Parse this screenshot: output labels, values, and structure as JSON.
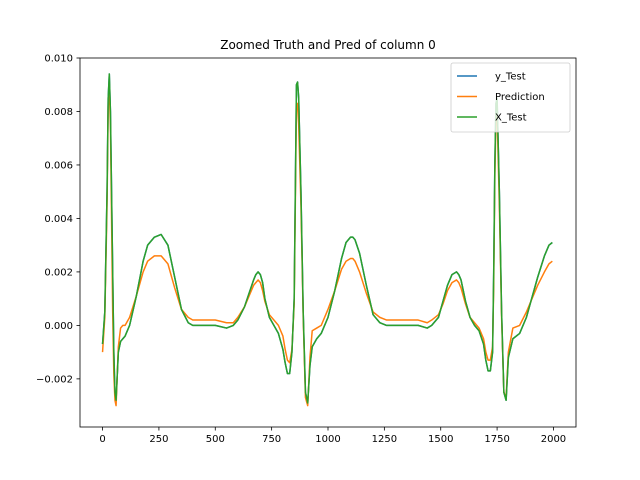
{
  "chart_data": {
    "type": "line",
    "title": "Zoomed Truth and Pred of column 0",
    "xlabel": "",
    "ylabel": "",
    "xlim": [
      -100,
      2100
    ],
    "ylim": [
      -0.0038,
      0.01
    ],
    "xticks": [
      0,
      250,
      500,
      750,
      1000,
      1250,
      1500,
      1750,
      2000
    ],
    "xtick_labels": [
      "0",
      "250",
      "500",
      "750",
      "1000",
      "1250",
      "1500",
      "1750",
      "2000"
    ],
    "yticks": [
      -0.002,
      0.0,
      0.002,
      0.004,
      0.006,
      0.008,
      0.01
    ],
    "ytick_labels": [
      "−0.002",
      "0.000",
      "0.002",
      "0.004",
      "0.006",
      "0.008",
      "0.010"
    ],
    "grid": false,
    "legend_position": "top-right",
    "series": [
      {
        "name": "y_Test",
        "color": "#1f77b4",
        "x": [
          0,
          10,
          20,
          25,
          30,
          35,
          40,
          45,
          50,
          55,
          60,
          70,
          80,
          90,
          100,
          120,
          150,
          180,
          200,
          230,
          260,
          290,
          320,
          350,
          380,
          400,
          450,
          500,
          550,
          580,
          600,
          630,
          650,
          670,
          680,
          690,
          700,
          710,
          720,
          740,
          760,
          780,
          800,
          810,
          820,
          830,
          840,
          850,
          855,
          860,
          865,
          870,
          880,
          890,
          900,
          910,
          920,
          930,
          950,
          970,
          1000,
          1030,
          1060,
          1080,
          1100,
          1110,
          1120,
          1140,
          1170,
          1200,
          1230,
          1260,
          1300,
          1350,
          1400,
          1440,
          1460,
          1490,
          1510,
          1530,
          1550,
          1570,
          1580,
          1590,
          1610,
          1630,
          1650,
          1670,
          1690,
          1700,
          1710,
          1720,
          1730,
          1735,
          1740,
          1745,
          1750,
          1760,
          1770,
          1780,
          1790,
          1800,
          1820,
          1850,
          1880,
          1900,
          1930,
          1960,
          1980,
          1995
        ],
        "y": [
          -0.0007,
          0.0005,
          0.005,
          0.0085,
          0.0094,
          0.008,
          0.005,
          0.002,
          -0.001,
          -0.0025,
          -0.0028,
          -0.001,
          -0.0006,
          -0.0005,
          -0.0004,
          0.0,
          0.0011,
          0.0024,
          0.003,
          0.0033,
          0.0034,
          0.003,
          0.0018,
          0.0006,
          0.0001,
          0.0,
          0.0,
          0.0,
          -0.0001,
          0.0,
          0.0002,
          0.0007,
          0.0012,
          0.0017,
          0.0019,
          0.002,
          0.0019,
          0.0016,
          0.001,
          0.0003,
          0.0,
          -0.0003,
          -0.0009,
          -0.0014,
          -0.0018,
          -0.0018,
          -0.001,
          0.001,
          0.005,
          0.009,
          0.0091,
          0.0085,
          0.005,
          0.0005,
          -0.0025,
          -0.0029,
          -0.0015,
          -0.0008,
          -0.0005,
          -0.0003,
          0.0003,
          0.0013,
          0.0025,
          0.0031,
          0.0033,
          0.0033,
          0.0032,
          0.0027,
          0.0015,
          0.0004,
          0.0001,
          0.0,
          0.0,
          0.0,
          0.0,
          -0.0001,
          0.0,
          0.0003,
          0.0009,
          0.0015,
          0.0019,
          0.002,
          0.0019,
          0.0017,
          0.0009,
          0.0003,
          0.0,
          -0.0002,
          -0.0007,
          -0.0013,
          -0.0017,
          -0.0017,
          -0.001,
          0.002,
          0.006,
          0.0083,
          0.0085,
          0.005,
          0.0005,
          -0.0025,
          -0.0028,
          -0.0012,
          -0.0005,
          -0.0003,
          0.0003,
          0.0009,
          0.0018,
          0.0026,
          0.003,
          0.0031
        ]
      },
      {
        "name": "Prediction",
        "color": "#ff7f0e",
        "x": [
          0,
          10,
          20,
          25,
          30,
          35,
          40,
          45,
          50,
          55,
          60,
          70,
          80,
          90,
          100,
          120,
          150,
          180,
          200,
          230,
          260,
          290,
          320,
          350,
          380,
          400,
          450,
          500,
          550,
          580,
          600,
          630,
          650,
          670,
          680,
          690,
          700,
          710,
          720,
          740,
          760,
          780,
          800,
          810,
          820,
          830,
          840,
          850,
          855,
          860,
          865,
          870,
          880,
          890,
          900,
          910,
          920,
          930,
          950,
          970,
          1000,
          1030,
          1060,
          1080,
          1100,
          1110,
          1120,
          1140,
          1170,
          1200,
          1230,
          1260,
          1300,
          1350,
          1400,
          1440,
          1460,
          1490,
          1510,
          1530,
          1550,
          1570,
          1580,
          1590,
          1610,
          1630,
          1650,
          1670,
          1690,
          1700,
          1710,
          1720,
          1730,
          1735,
          1740,
          1745,
          1750,
          1760,
          1770,
          1780,
          1790,
          1800,
          1820,
          1850,
          1880,
          1900,
          1930,
          1960,
          1980,
          1995
        ],
        "y": [
          -0.001,
          0.0003,
          0.0045,
          0.0082,
          0.0088,
          0.0075,
          0.004,
          0.0005,
          -0.0018,
          -0.0028,
          -0.003,
          -0.0008,
          -0.0001,
          0.0,
          0.0,
          0.0003,
          0.0011,
          0.002,
          0.0024,
          0.0026,
          0.0026,
          0.0023,
          0.0014,
          0.0006,
          0.0003,
          0.0002,
          0.0002,
          0.0002,
          0.0001,
          0.0001,
          0.0003,
          0.0007,
          0.0011,
          0.0015,
          0.0016,
          0.0017,
          0.0016,
          0.0013,
          0.0009,
          0.0004,
          0.0002,
          0.0,
          -0.0004,
          -0.0009,
          -0.0013,
          -0.0014,
          -0.0009,
          0.0008,
          0.0045,
          0.0082,
          0.0083,
          0.0075,
          0.0045,
          0.0003,
          -0.0027,
          -0.003,
          -0.0012,
          -0.0002,
          -0.0001,
          0.0,
          0.0006,
          0.0013,
          0.0021,
          0.0024,
          0.0025,
          0.0025,
          0.0024,
          0.002,
          0.0012,
          0.0005,
          0.0003,
          0.0002,
          0.0002,
          0.0002,
          0.0002,
          0.0001,
          0.0002,
          0.0004,
          0.0008,
          0.0013,
          0.0016,
          0.0017,
          0.0016,
          0.0014,
          0.0008,
          0.0003,
          0.0001,
          -0.0001,
          -0.0005,
          -0.001,
          -0.0013,
          -0.0013,
          -0.0008,
          0.0015,
          0.0055,
          0.0078,
          0.0079,
          0.0045,
          0.0003,
          -0.0025,
          -0.0027,
          -0.001,
          -0.0001,
          0.0,
          0.0005,
          0.0009,
          0.0015,
          0.002,
          0.0023,
          0.0024
        ]
      },
      {
        "name": "X_Test",
        "color": "#2ca02c",
        "x": [
          0,
          10,
          20,
          25,
          30,
          35,
          40,
          45,
          50,
          55,
          60,
          70,
          80,
          90,
          100,
          120,
          150,
          180,
          200,
          230,
          260,
          290,
          320,
          350,
          380,
          400,
          450,
          500,
          550,
          580,
          600,
          630,
          650,
          670,
          680,
          690,
          700,
          710,
          720,
          740,
          760,
          780,
          800,
          810,
          820,
          830,
          840,
          850,
          855,
          860,
          865,
          870,
          880,
          890,
          900,
          910,
          920,
          930,
          950,
          970,
          1000,
          1030,
          1060,
          1080,
          1100,
          1110,
          1120,
          1140,
          1170,
          1200,
          1230,
          1260,
          1300,
          1350,
          1400,
          1440,
          1460,
          1490,
          1510,
          1530,
          1550,
          1570,
          1580,
          1590,
          1610,
          1630,
          1650,
          1670,
          1690,
          1700,
          1710,
          1720,
          1730,
          1735,
          1740,
          1745,
          1750,
          1760,
          1770,
          1780,
          1790,
          1800,
          1820,
          1850,
          1880,
          1900,
          1930,
          1960,
          1980,
          1995
        ],
        "y": [
          -0.0007,
          0.0005,
          0.005,
          0.0085,
          0.0094,
          0.008,
          0.005,
          0.002,
          -0.001,
          -0.0025,
          -0.0028,
          -0.001,
          -0.0006,
          -0.0005,
          -0.0004,
          0.0,
          0.0011,
          0.0024,
          0.003,
          0.0033,
          0.0034,
          0.003,
          0.0018,
          0.0006,
          0.0001,
          0.0,
          0.0,
          0.0,
          -0.0001,
          0.0,
          0.0002,
          0.0007,
          0.0012,
          0.0017,
          0.0019,
          0.002,
          0.0019,
          0.0016,
          0.001,
          0.0003,
          0.0,
          -0.0003,
          -0.0009,
          -0.0014,
          -0.0018,
          -0.0018,
          -0.001,
          0.001,
          0.005,
          0.009,
          0.0091,
          0.0085,
          0.005,
          0.0005,
          -0.0025,
          -0.0029,
          -0.0015,
          -0.0008,
          -0.0005,
          -0.0003,
          0.0003,
          0.0013,
          0.0025,
          0.0031,
          0.0033,
          0.0033,
          0.0032,
          0.0027,
          0.0015,
          0.0004,
          0.0001,
          0.0,
          0.0,
          0.0,
          0.0,
          -0.0001,
          0.0,
          0.0003,
          0.0009,
          0.0015,
          0.0019,
          0.002,
          0.0019,
          0.0017,
          0.0009,
          0.0003,
          0.0,
          -0.0002,
          -0.0007,
          -0.0013,
          -0.0017,
          -0.0017,
          -0.001,
          0.002,
          0.006,
          0.0083,
          0.0085,
          0.005,
          0.0005,
          -0.0025,
          -0.0028,
          -0.0012,
          -0.0005,
          -0.0003,
          0.0003,
          0.0009,
          0.0018,
          0.0026,
          0.003,
          0.0031
        ]
      }
    ]
  }
}
